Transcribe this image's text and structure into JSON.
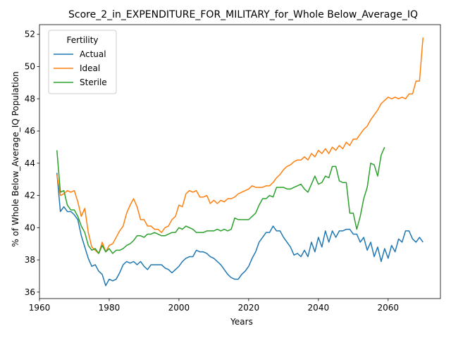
{
  "chart_data": {
    "type": "line",
    "title": "Score_2_in_EXPENDITURE_FOR_MILITARY_for_Whole Below_Average_IQ",
    "xlabel": "Years",
    "ylabel": "% of Whole Below_Average_IQ Population",
    "xlim": [
      1960,
      2075
    ],
    "ylim": [
      35.6,
      52.6
    ],
    "xticks": [
      1960,
      1980,
      2000,
      2020,
      2040,
      2060
    ],
    "yticks": [
      36,
      38,
      40,
      42,
      44,
      46,
      48,
      50,
      52
    ],
    "grid": false,
    "legend": {
      "title": "Fertility",
      "placement": "top-left"
    },
    "series": [
      {
        "name": "Actual",
        "color": "#1f77b4",
        "x_start": 1965,
        "values": [
          43.4,
          41.0,
          41.3,
          41.0,
          41.0,
          40.8,
          40.5,
          39.5,
          38.8,
          38.1,
          37.6,
          37.7,
          37.3,
          37.1,
          36.4,
          36.8,
          36.7,
          36.8,
          37.2,
          37.7,
          37.9,
          37.8,
          37.9,
          37.7,
          37.9,
          37.6,
          37.4,
          37.7,
          37.7,
          37.7,
          37.7,
          37.5,
          37.4,
          37.2,
          37.4,
          37.6,
          37.9,
          38.1,
          38.2,
          38.2,
          38.6,
          38.5,
          38.5,
          38.4,
          38.2,
          38.1,
          37.9,
          37.7,
          37.4,
          37.1,
          36.9,
          36.8,
          36.8,
          37.1,
          37.3,
          37.6,
          38.1,
          38.5,
          39.1,
          39.4,
          39.7,
          39.7,
          40.1,
          39.8,
          39.8,
          39.4,
          39.1,
          38.8,
          38.3,
          38.4,
          38.2,
          38.6,
          38.2,
          39.1,
          38.5,
          39.4,
          38.8,
          39.8,
          39.1,
          39.8,
          39.4,
          39.8,
          39.8,
          39.9,
          39.9,
          39.6,
          39.6,
          39.1,
          39.4,
          38.6,
          39.1,
          38.2,
          38.8,
          37.9,
          38.7,
          38.1,
          38.9,
          38.5,
          39.3,
          39.1,
          39.8,
          39.8,
          39.3,
          39.1,
          39.4,
          39.1
        ]
      },
      {
        "name": "Ideal",
        "color": "#ff7f0e",
        "x_start": 1965,
        "values": [
          43.3,
          42.0,
          42.1,
          42.3,
          42.2,
          42.3,
          41.6,
          40.7,
          41.2,
          39.7,
          38.8,
          38.6,
          38.4,
          39.1,
          38.5,
          38.9,
          39.0,
          39.4,
          39.8,
          40.1,
          40.9,
          41.4,
          41.8,
          41.3,
          40.5,
          40.5,
          40.1,
          40.1,
          39.9,
          39.9,
          39.7,
          40.0,
          40.1,
          40.5,
          40.7,
          41.4,
          41.3,
          42.1,
          42.3,
          42.2,
          42.3,
          41.9,
          41.9,
          42.0,
          41.5,
          41.7,
          41.5,
          41.7,
          41.6,
          41.8,
          41.8,
          41.9,
          42.1,
          42.2,
          42.3,
          42.4,
          42.6,
          42.5,
          42.5,
          42.5,
          42.6,
          42.6,
          42.8,
          43.1,
          43.3,
          43.6,
          43.8,
          43.9,
          44.1,
          44.2,
          44.2,
          44.4,
          44.2,
          44.6,
          44.4,
          44.8,
          44.6,
          44.9,
          44.6,
          45.0,
          44.8,
          45.1,
          44.9,
          45.3,
          45.1,
          45.5,
          45.5,
          45.8,
          46.1,
          46.3,
          46.7,
          47.0,
          47.3,
          47.7,
          47.9,
          48.1,
          48.0,
          48.1,
          48.0,
          48.1,
          48.0,
          48.3,
          48.3,
          49.1,
          49.1,
          51.8
        ]
      },
      {
        "name": "Sterile",
        "color": "#2ca02c",
        "x_start": 1965,
        "values": [
          44.8,
          42.2,
          42.3,
          41.4,
          41.1,
          41.1,
          40.7,
          40.1,
          39.7,
          38.9,
          38.6,
          38.7,
          38.4,
          38.9,
          38.5,
          38.7,
          38.4,
          38.6,
          38.6,
          38.7,
          38.9,
          39.0,
          39.2,
          39.5,
          39.5,
          39.4,
          39.6,
          39.6,
          39.7,
          39.6,
          39.5,
          39.5,
          39.6,
          39.7,
          39.7,
          40.0,
          39.9,
          40.1,
          40.0,
          39.9,
          39.7,
          39.7,
          39.7,
          39.8,
          39.8,
          39.8,
          39.9,
          39.8,
          39.9,
          39.8,
          39.9,
          40.6,
          40.5,
          40.5,
          40.5,
          40.5,
          40.7,
          40.9,
          41.4,
          41.8,
          41.8,
          42.0,
          41.9,
          42.5,
          42.5,
          42.5,
          42.4,
          42.4,
          42.5,
          42.6,
          42.7,
          42.4,
          42.2,
          42.7,
          43.2,
          42.7,
          42.8,
          43.2,
          43.1,
          43.8,
          43.8,
          42.9,
          42.8,
          42.8,
          40.9,
          40.9,
          39.9,
          40.7,
          41.8,
          42.5,
          44.0,
          43.9,
          43.2,
          44.5,
          45.0
        ]
      }
    ]
  }
}
